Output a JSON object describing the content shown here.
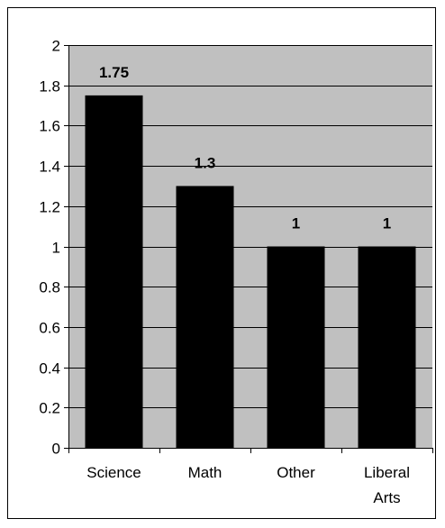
{
  "chart_data": {
    "type": "bar",
    "title": "",
    "xlabel": "",
    "ylabel": "",
    "categories": [
      [
        "Science"
      ],
      [
        "Math"
      ],
      [
        "Other"
      ],
      [
        "Liberal",
        "Arts"
      ]
    ],
    "values": [
      1.75,
      1.3,
      1,
      1
    ],
    "data_labels": [
      "1.75",
      "1.3",
      "1",
      "1"
    ],
    "ylim": [
      0,
      2
    ],
    "yticks": [
      0,
      0.2,
      0.4,
      0.6,
      0.8,
      1,
      1.2,
      1.4,
      1.6,
      1.8,
      2
    ],
    "ytick_labels": [
      "0",
      "0.2",
      "0.4",
      "0.6",
      "0.8",
      "1",
      "1.2",
      "1.4",
      "1.6",
      "1.8",
      "2"
    ],
    "grid": true,
    "legend": "none",
    "colors": {
      "plot_background": "#c0c0c0",
      "bar_fill": "#000000",
      "gridline": "#000000",
      "axis": "#000000",
      "frame": "#000000",
      "text": "#000000"
    }
  }
}
